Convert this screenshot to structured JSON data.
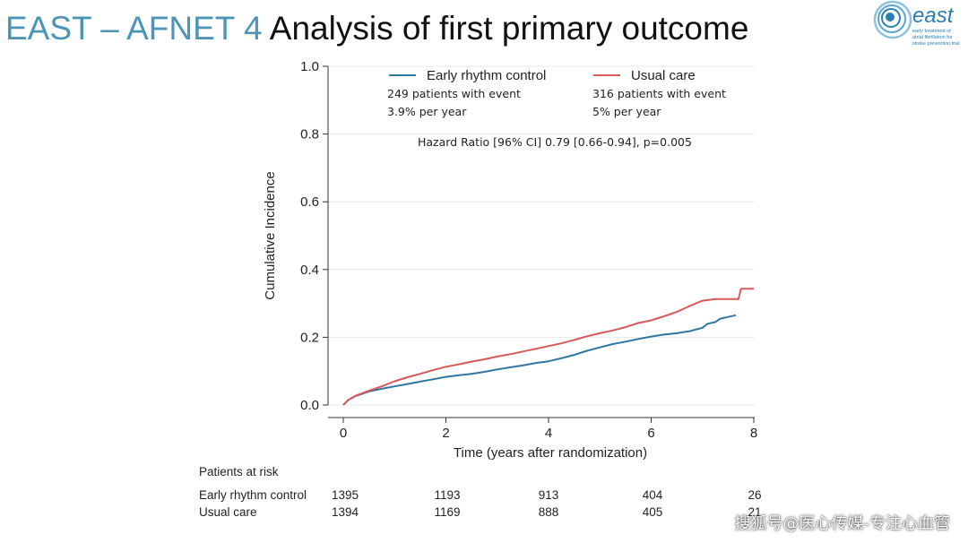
{
  "slide": {
    "title_accent": "EAST – AFNET 4",
    "title_main": "Analysis of first primary outcome"
  },
  "logo": {
    "wordmark": "east",
    "tagline": [
      "early treatment of",
      "atrial fibrillation for",
      "stroke prevention trial"
    ],
    "colors": {
      "primary": "#2a7fb0",
      "light": "#8cc3dc"
    }
  },
  "watermark": "搜狐号@医心传媒-专注心血管",
  "chart_data": {
    "type": "line",
    "xlabel": "Time (years after randomization)",
    "ylabel": "Cumulative Incidence",
    "xlim": [
      0,
      8
    ],
    "ylim": [
      0,
      1
    ],
    "xticks": [
      0,
      2,
      4,
      6,
      8
    ],
    "yticks": [
      "0.0",
      "0.2",
      "0.4",
      "0.6",
      "0.8",
      "1.0"
    ],
    "grid": "horizontal",
    "legend_position": "top",
    "annotation": "Hazard Ratio [96% CI] 0.79 [0.66-0.94], p=0.005",
    "series": [
      {
        "name": "Early rhythm control",
        "color": "#2e77a3",
        "events_text": "249 patients with event",
        "rate_text": "3.9% per year",
        "step": false,
        "x": [
          0,
          0.1,
          0.25,
          0.5,
          0.75,
          1.0,
          1.25,
          1.5,
          1.75,
          2.0,
          2.25,
          2.5,
          2.75,
          3.0,
          3.25,
          3.5,
          3.75,
          4.0,
          4.25,
          4.5,
          4.75,
          5.0,
          5.25,
          5.5,
          5.75,
          6.0,
          6.25,
          6.5,
          6.75,
          7.0,
          7.1,
          7.25,
          7.35,
          7.5,
          7.65
        ],
        "y": [
          0.0,
          0.015,
          0.027,
          0.04,
          0.048,
          0.055,
          0.062,
          0.069,
          0.076,
          0.083,
          0.088,
          0.092,
          0.098,
          0.105,
          0.111,
          0.117,
          0.124,
          0.129,
          0.138,
          0.148,
          0.16,
          0.17,
          0.18,
          0.187,
          0.195,
          0.202,
          0.208,
          0.212,
          0.218,
          0.228,
          0.24,
          0.245,
          0.255,
          0.26,
          0.265
        ]
      },
      {
        "name": "Usual care",
        "color": "#d9585a",
        "events_text": "316 patients with event",
        "rate_text": "5% per year",
        "step": false,
        "x": [
          0,
          0.1,
          0.25,
          0.5,
          0.75,
          1.0,
          1.25,
          1.5,
          1.75,
          2.0,
          2.25,
          2.5,
          2.75,
          3.0,
          3.25,
          3.5,
          3.75,
          4.0,
          4.25,
          4.5,
          4.75,
          5.0,
          5.25,
          5.5,
          5.75,
          6.0,
          6.25,
          6.5,
          6.75,
          7.0,
          7.25,
          7.5,
          7.7,
          7.75,
          8.0
        ],
        "y": [
          0.0,
          0.015,
          0.028,
          0.042,
          0.055,
          0.07,
          0.082,
          0.092,
          0.103,
          0.113,
          0.12,
          0.128,
          0.135,
          0.143,
          0.15,
          0.158,
          0.166,
          0.174,
          0.182,
          0.192,
          0.203,
          0.212,
          0.22,
          0.23,
          0.242,
          0.25,
          0.262,
          0.275,
          0.292,
          0.308,
          0.313,
          0.313,
          0.313,
          0.343,
          0.343
        ]
      }
    ]
  },
  "risk_table": {
    "header": "Patients at risk",
    "rows": [
      {
        "label": "Early rhythm control",
        "values": [
          "1395",
          "1193",
          "913",
          "404",
          "26"
        ]
      },
      {
        "label": "Usual care",
        "values": [
          "1394",
          "1169",
          "888",
          "405",
          "21"
        ]
      }
    ]
  }
}
